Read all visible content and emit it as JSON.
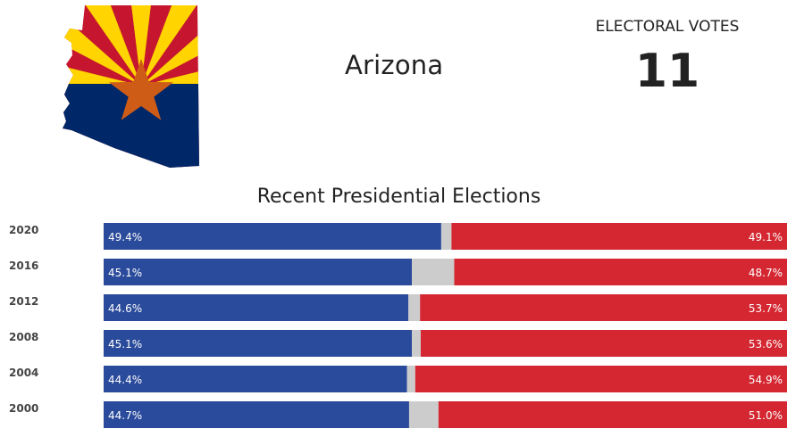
{
  "state": {
    "name": "Arizona"
  },
  "electoral": {
    "label": "ELECTORAL VOTES",
    "value": "11"
  },
  "colors": {
    "democrat": "#2a4a9b",
    "republican": "#d42731",
    "other": "#cccccc",
    "flag_red": "#c5152f",
    "flag_yellow": "#ffd400",
    "flag_blue": "#002868",
    "flag_star": "#ce5c17"
  },
  "chart_data": {
    "type": "bar",
    "title": "Recent Presidential Elections",
    "categories": [
      "2020",
      "2016",
      "2012",
      "2008",
      "2004",
      "2000"
    ],
    "xlim": [
      0,
      100
    ],
    "series": [
      {
        "values": [
          49.4,
          45.1,
          44.6,
          45.1,
          44.4,
          44.7
        ],
        "labels": [
          "49.4%",
          "45.1%",
          "44.6%",
          "45.1%",
          "44.4%",
          "44.7%"
        ]
      },
      {
        "values": [
          1.5,
          6.2,
          1.7,
          1.3,
          1.2,
          4.3
        ]
      },
      {
        "values": [
          49.1,
          48.7,
          53.7,
          53.6,
          54.9,
          51.0
        ],
        "labels": [
          "49.1%",
          "48.7%",
          "53.7%",
          "53.6%",
          "54.9%",
          "51.0%"
        ]
      }
    ]
  }
}
